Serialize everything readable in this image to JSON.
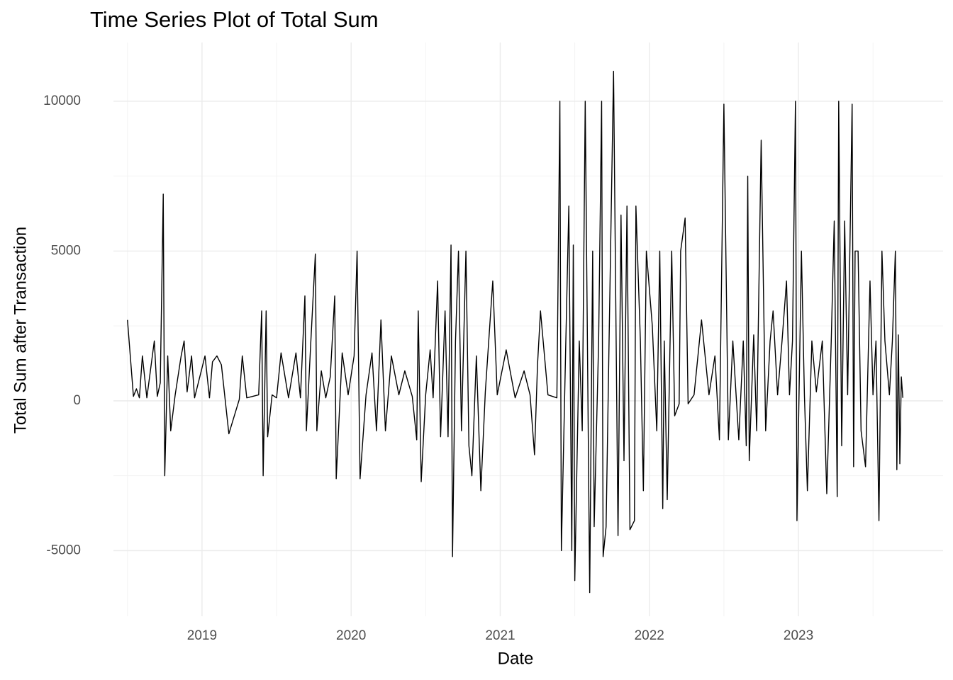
{
  "chart_data": {
    "type": "line",
    "title": "Time Series Plot of Total Sum",
    "x_label": "Date",
    "y_label": "Total Sum after Transaction",
    "color": "#000000",
    "grid": true,
    "xlim": [
      2018.406,
      2023.97
    ],
    "ylim": [
      -7190,
      11960
    ],
    "xticks": [
      2019,
      2020,
      2021,
      2022,
      2023
    ],
    "xminor": [
      2018.5,
      2019.5,
      2020.5,
      2021.5,
      2022.5,
      2023.5
    ],
    "yticks": [
      -5000,
      0,
      5000,
      10000
    ],
    "yminor": [
      -2500,
      2500,
      7500
    ],
    "x": [
      2018.5,
      2018.54,
      2018.56,
      2018.58,
      2018.6,
      2018.63,
      2018.68,
      2018.7,
      2018.72,
      2018.74,
      2018.75,
      2018.77,
      2018.79,
      2018.82,
      2018.86,
      2018.88,
      2018.9,
      2018.93,
      2018.95,
      2019.02,
      2019.05,
      2019.07,
      2019.1,
      2019.13,
      2019.18,
      2019.25,
      2019.27,
      2019.3,
      2019.38,
      2019.4,
      2019.41,
      2019.43,
      2019.44,
      2019.47,
      2019.5,
      2019.53,
      2019.58,
      2019.63,
      2019.66,
      2019.69,
      2019.7,
      2019.73,
      2019.76,
      2019.77,
      2019.8,
      2019.83,
      2019.86,
      2019.89,
      2019.9,
      2019.94,
      2019.98,
      2020.02,
      2020.04,
      2020.06,
      2020.1,
      2020.14,
      2020.17,
      2020.2,
      2020.23,
      2020.27,
      2020.32,
      2020.36,
      2020.41,
      2020.44,
      2020.45,
      2020.47,
      2020.5,
      2020.53,
      2020.55,
      2020.58,
      2020.6,
      2020.63,
      2020.65,
      2020.67,
      2020.68,
      2020.7,
      2020.72,
      2020.74,
      2020.77,
      2020.79,
      2020.81,
      2020.84,
      2020.87,
      2020.9,
      2020.95,
      2020.98,
      2021.04,
      2021.1,
      2021.16,
      2021.2,
      2021.23,
      2021.25,
      2021.27,
      2021.32,
      2021.38,
      2021.4,
      2021.41,
      2021.44,
      2021.46,
      2021.48,
      2021.49,
      2021.5,
      2021.53,
      2021.55,
      2021.57,
      2021.6,
      2021.62,
      2021.63,
      2021.66,
      2021.68,
      2021.69,
      2021.71,
      2021.73,
      2021.76,
      2021.79,
      2021.81,
      2021.83,
      2021.85,
      2021.87,
      2021.9,
      2021.91,
      2021.94,
      2021.96,
      2021.98,
      2022.02,
      2022.05,
      2022.07,
      2022.09,
      2022.1,
      2022.12,
      2022.15,
      2022.17,
      2022.2,
      2022.21,
      2022.24,
      2022.26,
      2022.3,
      2022.35,
      2022.4,
      2022.44,
      2022.47,
      2022.5,
      2022.53,
      2022.56,
      2022.6,
      2022.63,
      2022.65,
      2022.66,
      2022.67,
      2022.7,
      2022.72,
      2022.75,
      2022.78,
      2022.81,
      2022.83,
      2022.86,
      2022.89,
      2022.92,
      2022.94,
      2022.96,
      2022.98,
      2022.99,
      2023.02,
      2023.04,
      2023.06,
      2023.09,
      2023.12,
      2023.16,
      2023.19,
      2023.22,
      2023.24,
      2023.26,
      2023.27,
      2023.29,
      2023.31,
      2023.33,
      2023.36,
      2023.37,
      2023.38,
      2023.4,
      2023.42,
      2023.45,
      2023.48,
      2023.5,
      2023.52,
      2023.54,
      2023.56,
      2023.58,
      2023.61,
      2023.63,
      2023.65,
      2023.66,
      2023.67,
      2023.68,
      2023.69,
      2023.7
    ],
    "values": [
      2700,
      150,
      400,
      100,
      1500,
      100,
      2000,
      150,
      600,
      6900,
      -2500,
      1500,
      -1000,
      200,
      1500,
      2000,
      300,
      1500,
      100,
      1500,
      100,
      1300,
      1500,
      1200,
      -1100,
      50,
      1500,
      100,
      200,
      3000,
      -2500,
      3000,
      -1200,
      200,
      100,
      1600,
      100,
      1600,
      100,
      3500,
      -1000,
      2000,
      4900,
      -1000,
      1000,
      100,
      800,
      3500,
      -2600,
      1600,
      200,
      1500,
      5000,
      -2600,
      200,
      1600,
      -1000,
      2700,
      -1000,
      1500,
      200,
      1000,
      150,
      -1300,
      3000,
      -2700,
      200,
      1700,
      100,
      4000,
      -1200,
      3000,
      -1200,
      5200,
      -5200,
      2000,
      5000,
      -1000,
      5000,
      -1500,
      -2500,
      1500,
      -3000,
      300,
      4000,
      200,
      1700,
      100,
      1000,
      200,
      -1800,
      1200,
      3000,
      200,
      100,
      10000,
      -5000,
      2000,
      6500,
      -5000,
      5200,
      -6000,
      2000,
      -1000,
      10000,
      -6400,
      5000,
      -4200,
      2000,
      10000,
      -5200,
      -4200,
      2000,
      11000,
      -4500,
      6200,
      -2000,
      6500,
      -4300,
      -4000,
      6500,
      2000,
      -3000,
      5000,
      2500,
      -1000,
      5000,
      -3600,
      2000,
      -3300,
      5000,
      -500,
      -100,
      5000,
      6100,
      -100,
      200,
      2700,
      200,
      1500,
      -1300,
      9900,
      -1300,
      2000,
      -1300,
      2000,
      -1500,
      7500,
      -2000,
      2200,
      -1000,
      8700,
      -1000,
      2000,
      3000,
      200,
      2000,
      4000,
      200,
      2000,
      10000,
      -4000,
      5000,
      200,
      -3000,
      2000,
      300,
      2000,
      -3100,
      2000,
      6000,
      -3200,
      10000,
      -1500,
      6000,
      200,
      9900,
      -2200,
      5000,
      5000,
      -1000,
      -2200,
      4000,
      200,
      2000,
      -4000,
      5000,
      2000,
      200,
      2000,
      5000,
      -2300,
      2200,
      -2100,
      800,
      100
    ]
  }
}
